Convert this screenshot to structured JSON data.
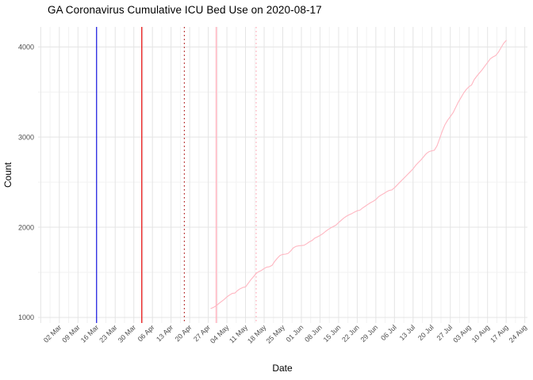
{
  "chart_data": {
    "type": "line",
    "title": "GA Coronavirus Cumulative ICU Bed Use on 2020-08-17",
    "xlabel": "Date",
    "ylabel": "Count",
    "legend": false,
    "grid": true,
    "xlim": [
      "02-23",
      "08-25"
    ],
    "ylim": [
      938,
      4222
    ],
    "y_ticks": [
      1000,
      2000,
      3000,
      4000
    ],
    "y_minor_ticks": [
      1500,
      2500,
      3500
    ],
    "x_ticks": [
      {
        "label": "02 Mar",
        "date": "03-02"
      },
      {
        "label": "09 Mar",
        "date": "03-09"
      },
      {
        "label": "16 Mar",
        "date": "03-16"
      },
      {
        "label": "23 Mar",
        "date": "03-23"
      },
      {
        "label": "30 Mar",
        "date": "03-30"
      },
      {
        "label": "06 Apr",
        "date": "04-06"
      },
      {
        "label": "13 Apr",
        "date": "04-13"
      },
      {
        "label": "20 Apr",
        "date": "04-20"
      },
      {
        "label": "27 Apr",
        "date": "04-27"
      },
      {
        "label": "04 May",
        "date": "05-04"
      },
      {
        "label": "11 May",
        "date": "05-11"
      },
      {
        "label": "18 May",
        "date": "05-18"
      },
      {
        "label": "25 May",
        "date": "05-25"
      },
      {
        "label": "01 Jun",
        "date": "06-01"
      },
      {
        "label": "08 Jun",
        "date": "06-08"
      },
      {
        "label": "15 Jun",
        "date": "06-15"
      },
      {
        "label": "22 Jun",
        "date": "06-22"
      },
      {
        "label": "29 Jun",
        "date": "06-29"
      },
      {
        "label": "06 Jul",
        "date": "07-06"
      },
      {
        "label": "13 Jul",
        "date": "07-13"
      },
      {
        "label": "20 Jul",
        "date": "07-20"
      },
      {
        "label": "27 Jul",
        "date": "07-27"
      },
      {
        "label": "03 Aug",
        "date": "08-03"
      },
      {
        "label": "10 Aug",
        "date": "08-10"
      },
      {
        "label": "17 Aug",
        "date": "08-17"
      },
      {
        "label": "24 Aug",
        "date": "08-24"
      }
    ],
    "first_major_gridline_date": "02-24",
    "event_lines": [
      {
        "name": "event-line-blue-solid",
        "date": "03-16",
        "color": "#0000e0",
        "style": "solid",
        "width": 1.1
      },
      {
        "name": "event-line-red-solid",
        "date": "04-02",
        "color": "#e60000",
        "style": "solid",
        "width": 1.2
      },
      {
        "name": "event-line-darkred-dotted",
        "date": "04-18",
        "color": "#b22222",
        "style": "dotted",
        "width": 1.2
      },
      {
        "name": "event-line-pink-solid",
        "date": "04-30",
        "color": "#ffb6c1",
        "style": "solid",
        "width": 1.6
      },
      {
        "name": "event-line-pink-dotted",
        "date": "05-15",
        "color": "#ffb6c1",
        "style": "dotted",
        "width": 1.4
      }
    ],
    "series": [
      {
        "name": "cumulative-icu-bed-use",
        "color": "#ffb6c1",
        "width": 1.1,
        "points": [
          [
            "04-28",
            1100
          ],
          [
            "04-29",
            1112
          ],
          [
            "04-30",
            1130
          ],
          [
            "05-01",
            1155
          ],
          [
            "05-02",
            1178
          ],
          [
            "05-03",
            1200
          ],
          [
            "05-04",
            1228
          ],
          [
            "05-05",
            1248
          ],
          [
            "05-06",
            1266
          ],
          [
            "05-07",
            1270
          ],
          [
            "05-08",
            1298
          ],
          [
            "05-09",
            1318
          ],
          [
            "05-10",
            1332
          ],
          [
            "05-11",
            1338
          ],
          [
            "05-12",
            1378
          ],
          [
            "05-13",
            1418
          ],
          [
            "05-14",
            1452
          ],
          [
            "05-15",
            1488
          ],
          [
            "05-16",
            1508
          ],
          [
            "05-17",
            1522
          ],
          [
            "05-18",
            1542
          ],
          [
            "05-19",
            1558
          ],
          [
            "05-20",
            1562
          ],
          [
            "05-21",
            1578
          ],
          [
            "05-22",
            1622
          ],
          [
            "05-23",
            1658
          ],
          [
            "05-24",
            1688
          ],
          [
            "05-25",
            1698
          ],
          [
            "05-26",
            1702
          ],
          [
            "05-27",
            1710
          ],
          [
            "05-28",
            1738
          ],
          [
            "05-29",
            1772
          ],
          [
            "05-30",
            1788
          ],
          [
            "05-31",
            1794
          ],
          [
            "06-01",
            1797
          ],
          [
            "06-02",
            1800
          ],
          [
            "06-03",
            1818
          ],
          [
            "06-04",
            1838
          ],
          [
            "06-05",
            1853
          ],
          [
            "06-06",
            1878
          ],
          [
            "06-07",
            1893
          ],
          [
            "06-08",
            1908
          ],
          [
            "06-09",
            1928
          ],
          [
            "06-10",
            1952
          ],
          [
            "06-11",
            1973
          ],
          [
            "06-12",
            1993
          ],
          [
            "06-13",
            2008
          ],
          [
            "06-14",
            2023
          ],
          [
            "06-15",
            2052
          ],
          [
            "06-16",
            2078
          ],
          [
            "06-17",
            2103
          ],
          [
            "06-18",
            2123
          ],
          [
            "06-19",
            2138
          ],
          [
            "06-20",
            2152
          ],
          [
            "06-21",
            2168
          ],
          [
            "06-22",
            2183
          ],
          [
            "06-23",
            2189
          ],
          [
            "06-24",
            2213
          ],
          [
            "06-25",
            2233
          ],
          [
            "06-26",
            2253
          ],
          [
            "06-27",
            2273
          ],
          [
            "06-28",
            2288
          ],
          [
            "06-29",
            2308
          ],
          [
            "06-30",
            2338
          ],
          [
            "07-01",
            2358
          ],
          [
            "07-02",
            2374
          ],
          [
            "07-03",
            2393
          ],
          [
            "07-04",
            2408
          ],
          [
            "07-05",
            2414
          ],
          [
            "07-06",
            2438
          ],
          [
            "07-07",
            2468
          ],
          [
            "07-08",
            2498
          ],
          [
            "07-09",
            2528
          ],
          [
            "07-10",
            2558
          ],
          [
            "07-11",
            2588
          ],
          [
            "07-12",
            2618
          ],
          [
            "07-13",
            2648
          ],
          [
            "07-14",
            2688
          ],
          [
            "07-15",
            2718
          ],
          [
            "07-16",
            2748
          ],
          [
            "07-17",
            2783
          ],
          [
            "07-18",
            2818
          ],
          [
            "07-19",
            2838
          ],
          [
            "07-20",
            2848
          ],
          [
            "07-21",
            2854
          ],
          [
            "07-22",
            2903
          ],
          [
            "07-23",
            2983
          ],
          [
            "07-24",
            3068
          ],
          [
            "07-25",
            3138
          ],
          [
            "07-26",
            3188
          ],
          [
            "07-27",
            3228
          ],
          [
            "07-28",
            3268
          ],
          [
            "07-29",
            3328
          ],
          [
            "07-30",
            3388
          ],
          [
            "07-31",
            3438
          ],
          [
            "08-01",
            3488
          ],
          [
            "08-02",
            3528
          ],
          [
            "08-03",
            3558
          ],
          [
            "08-04",
            3578
          ],
          [
            "08-05",
            3638
          ],
          [
            "08-06",
            3678
          ],
          [
            "08-07",
            3713
          ],
          [
            "08-08",
            3748
          ],
          [
            "08-09",
            3788
          ],
          [
            "08-10",
            3828
          ],
          [
            "08-11",
            3868
          ],
          [
            "08-12",
            3888
          ],
          [
            "08-13",
            3903
          ],
          [
            "08-14",
            3938
          ],
          [
            "08-15",
            3988
          ],
          [
            "08-16",
            4038
          ],
          [
            "08-17",
            4072
          ]
        ]
      }
    ],
    "colors": {
      "plot_background": "#ffffff",
      "grid_major": "#e4e4e4",
      "grid_minor": "#f2f2f2",
      "tick_label": "#4d4d4d",
      "axis_title": "#000000",
      "title": "#000000"
    }
  }
}
